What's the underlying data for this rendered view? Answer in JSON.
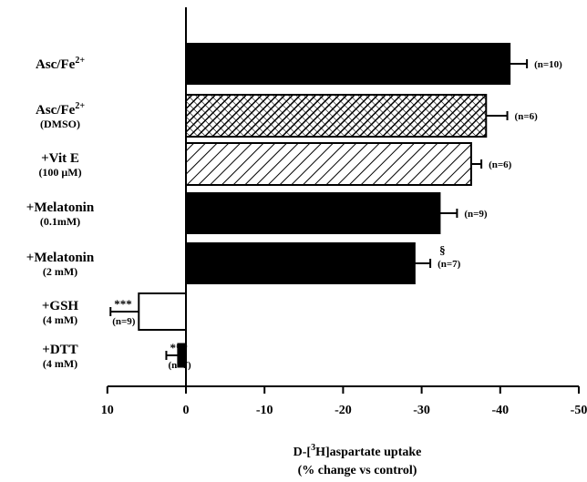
{
  "chart_data": {
    "type": "bar",
    "orientation": "horizontal",
    "categories": [
      {
        "label": "Asc/Fe",
        "sup": "2+",
        "sub": ""
      },
      {
        "label": "Asc/Fe",
        "sup": "2+",
        "sub": "(DMSO)"
      },
      {
        "label": "+Vit E",
        "sup": "",
        "sub": "(100 μM)"
      },
      {
        "label": "+Melatonin",
        "sup": "",
        "sub": "(0.1mM)"
      },
      {
        "label": "+Melatonin",
        "sup": "",
        "sub": "(2 mM)"
      },
      {
        "label": "+GSH",
        "sup": "",
        "sub": "(4 mM)"
      },
      {
        "label": "+DTT",
        "sup": "",
        "sub": "(4 mM)"
      }
    ],
    "values": [
      -41.2,
      -38.2,
      -36.3,
      -32.3,
      -29.1,
      6.0,
      1.0
    ],
    "errors": [
      2.2,
      2.7,
      1.3,
      2.2,
      2.0,
      3.6,
      1.5
    ],
    "n_labels": [
      "(n=10)",
      "(n=6)",
      "(n=6)",
      "(n=9)",
      "(n=7)",
      "(n=9)",
      "(n=7)"
    ],
    "significance": [
      "",
      "",
      "",
      "",
      "§",
      "***",
      "***"
    ],
    "fills": [
      "solid",
      "crosshatch",
      "hatch",
      "solid",
      "solid",
      "white",
      "solid"
    ],
    "xlim": [
      10,
      -50
    ],
    "xticks": [
      10,
      0,
      -10,
      -20,
      -30,
      -40,
      -50
    ],
    "xlabel_line1_prefix": "D-[",
    "xlabel_sup": "3",
    "xlabel_line1_suffix": "H]aspartate uptake",
    "xlabel_line2": "(% change vs control)"
  }
}
